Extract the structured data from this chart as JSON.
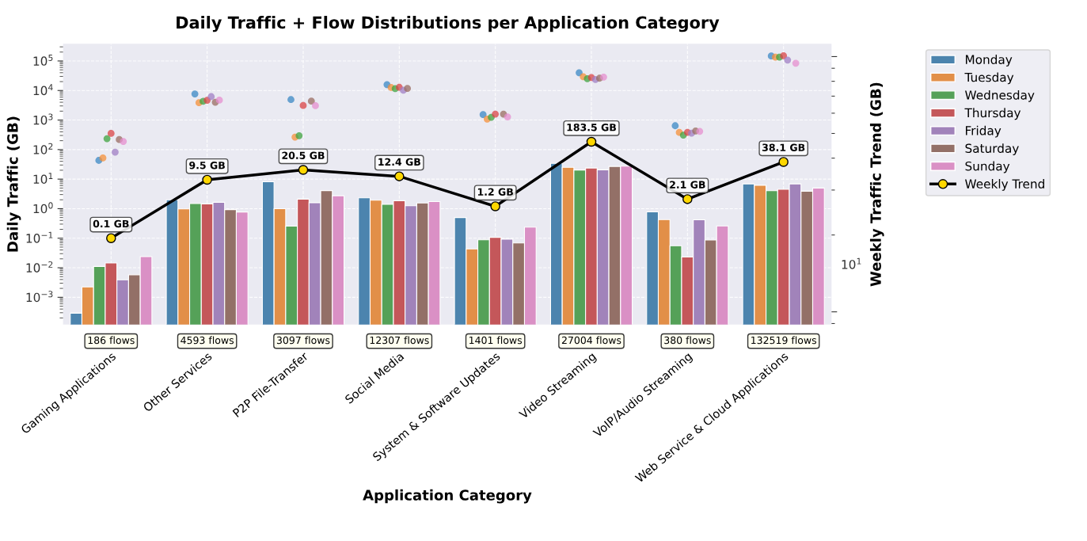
{
  "chart_data": {
    "type": "bar",
    "title": "Daily Traffic + Flow Distributions per Application Category",
    "xlabel": "Application Category",
    "ylabel": "Daily Traffic (GB)",
    "y2label": "Weekly Traffic Trend (GB)",
    "categories": [
      "Gaming Applications",
      "Other Services",
      "P2P File-Transfer",
      "Social Media",
      "System & Software Updates",
      "Video Streaming",
      "VoIP/Audio Streaming",
      "Web Service & Cloud Applications"
    ],
    "log": "y",
    "ylim": [
      0.000119,
      380000
    ],
    "yticks": [
      {
        "value": 0.001,
        "label": "10$^{−3}$"
      },
      {
        "value": 0.01,
        "label": "10$^{−2}$"
      },
      {
        "value": 0.1,
        "label": "10$^{−1}$"
      },
      {
        "value": 1,
        "label": "10$^{0}$"
      },
      {
        "value": 10,
        "label": "10$^{1}$"
      },
      {
        "value": 100,
        "label": "10$^{2}$"
      },
      {
        "value": 1000,
        "label": "10$^{3}$"
      },
      {
        "value": 10000,
        "label": "10$^{4}$"
      },
      {
        "value": 100000,
        "label": "10$^{5}$"
      }
    ],
    "grid": true,
    "legend": "top right",
    "series": [
      {
        "name": "Monday",
        "color": "#4c84ae",
        "values": [
          0.00029,
          1.99,
          8.1,
          2.33,
          0.5,
          34,
          0.78,
          6.9
        ]
      },
      {
        "name": "Tuesday",
        "color": "#e28f48",
        "values": [
          0.00225,
          0.98,
          1.0,
          1.93,
          0.0434,
          25.1,
          0.426,
          6.2
        ]
      },
      {
        "name": "Wednesday",
        "color": "#55a158",
        "values": [
          0.0111,
          1.5,
          0.256,
          1.4,
          0.0883,
          20.3,
          0.0557,
          4.06
        ]
      },
      {
        "name": "Thursday",
        "color": "#c4575a",
        "values": [
          0.0145,
          1.45,
          2.1,
          1.86,
          0.107,
          23.8,
          0.023,
          4.5
        ]
      },
      {
        "name": "Friday",
        "color": "#a183ba",
        "values": [
          0.0039,
          1.64,
          1.59,
          1.26,
          0.093,
          20.7,
          0.42,
          6.9
        ]
      },
      {
        "name": "Saturday",
        "color": "#937067",
        "values": [
          0.0058,
          0.93,
          4.1,
          1.56,
          0.0689,
          26.9,
          0.0867,
          3.9
        ]
      },
      {
        "name": "Sunday",
        "color": "#da90c5",
        "values": [
          0.0238,
          0.77,
          2.74,
          1.73,
          0.238,
          27.5,
          0.26,
          5.0
        ]
      },
      {
        "type": "scatter",
        "color": "#3b88c4",
        "x": [
          "Gaming Applications",
          "Other Services",
          "P2P File-Transfer",
          "Social Media",
          "System & Software Updates",
          "Video Streaming",
          "VoIP/Audio Streaming",
          "Web Service & Cloud Applications"
        ],
        "values": [
          43,
          7670,
          4920,
          15800,
          1530,
          40000,
          641,
          147000
        ]
      },
      {
        "type": "scatter",
        "color": "#f5903a",
        "x": [
          "Gaming Applications",
          "Other Services",
          "P2P File-Transfer",
          "Social Media",
          "System & Software Updates",
          "Video Streaming",
          "VoIP/Audio Streaming",
          "Web Service & Cloud Applications"
        ],
        "values": [
          52,
          3850,
          265,
          12600,
          1075,
          29400,
          380,
          135000
        ]
      },
      {
        "type": "scatter",
        "color": "#3fa33f",
        "x": [
          "Gaming Applications",
          "Other Services",
          "P2P File-Transfer",
          "Social Media",
          "System & Software Updates",
          "Video Streaming",
          "VoIP/Audio Streaming",
          "Web Service & Cloud Applications"
        ],
        "values": [
          234,
          4290,
          294,
          11500,
          1240,
          25100,
          309,
          135000
        ]
      },
      {
        "type": "scatter",
        "color": "#d94446",
        "x": [
          "Gaming Applications",
          "Other Services",
          "P2P File-Transfer",
          "Social Media",
          "System & Software Updates",
          "Video Streaming",
          "VoIP/Audio Streaming",
          "Web Service & Cloud Applications"
        ],
        "values": [
          352,
          4660,
          3100,
          12800,
          1590,
          27500,
          384,
          150000
        ]
      },
      {
        "type": "scatter",
        "color": "#a07fc4",
        "x": [
          "Gaming Applications",
          "Other Services",
          "P2P File-Transfer",
          "Social Media",
          "System & Software Updates",
          "Video Streaming",
          "VoIP/Audio Streaming",
          "Web Service & Cloud Applications"
        ],
        "values": [
          82,
          6200,
          null,
          10200,
          null,
          23400,
          358,
          107000
        ]
      },
      {
        "type": "scatter",
        "color": "#9a6c62",
        "x": [
          "Gaming Applications",
          "Other Services",
          "P2P File-Transfer",
          "Social Media",
          "System & Software Updates",
          "Video Streaming",
          "VoIP/Audio Streaming",
          "Web Service & Cloud Applications"
        ],
        "values": [
          218,
          4000,
          4350,
          11700,
          1590,
          26000,
          427,
          null
        ]
      },
      {
        "type": "scatter",
        "color": "#e68fcf",
        "x": [
          "Gaming Applications",
          "Other Services",
          "P2P File-Transfer",
          "Social Media",
          "System & Software Updates",
          "Video Streaming",
          "VoIP/Audio Streaming",
          "Web Service & Cloud Applications"
        ],
        "values": [
          189,
          4700,
          3050,
          null,
          1280,
          28400,
          413,
          83800
        ]
      },
      {
        "name": "Weekly Trend",
        "type": "line",
        "color": "#000000",
        "colors": [
          "#ffd700",
          "#ffd700",
          "#ffd700",
          "#ffd700",
          "#ffd700",
          "#ffd700",
          "#ffd700",
          "#ffd700"
        ],
        "marker": "circle",
        "line_style": "solid",
        "values": [
          0.1,
          9.5,
          20.5,
          12.4,
          1.2,
          183.5,
          2.1,
          38.1
        ],
        "value_labels": [
          "0.1 GB",
          "9.5 GB",
          "20.5 GB",
          "12.4 GB",
          "1.2 GB",
          "183.5 GB",
          "2.1 GB",
          "38.1 GB"
        ]
      }
    ],
    "annotations": [
      "186 flows",
      "4593 flows",
      "3097 flows",
      "12307 flows",
      "1401 flows",
      "27004 flows",
      "380 flows",
      "132519 flows",
      "10$^{1}$"
    ]
  }
}
